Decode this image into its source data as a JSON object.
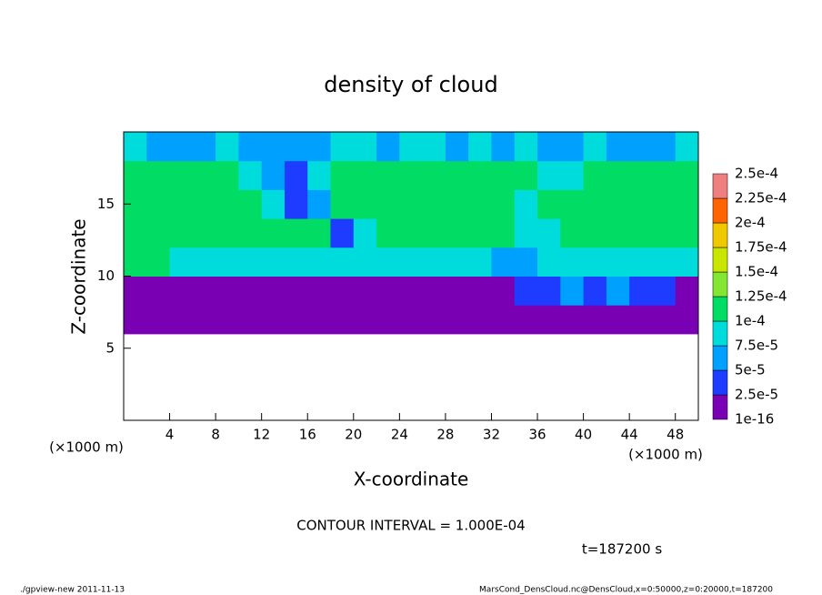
{
  "chart_data": {
    "type": "contour",
    "title": "density of cloud",
    "xlabel": "X-coordinate",
    "ylabel": "Z-coordinate",
    "xunit": "(×1000 m)",
    "yunit": "(×1000 m)",
    "note": "CONTOUR INTERVAL = 1.000E-04",
    "time": "t=187200 s",
    "footer_left": "./gpview-new   2011-11-13",
    "footer_right": "MarsCond_DensCloud.nc@DensCloud,x=0:50000,z=0:20000,t=187200",
    "xlim": [
      0,
      50
    ],
    "ylim": [
      0,
      20
    ],
    "xticks": [
      4,
      8,
      12,
      16,
      20,
      24,
      28,
      32,
      36,
      40,
      44,
      48
    ],
    "yticks": [
      5,
      10,
      15
    ],
    "x": [
      1,
      3,
      5,
      7,
      9,
      11,
      13,
      15,
      17,
      19,
      21,
      23,
      25,
      27,
      29,
      31,
      33,
      35,
      37,
      39,
      41,
      43,
      45,
      47,
      49
    ],
    "z": [
      1,
      3,
      5,
      7,
      9,
      11,
      13,
      15,
      17,
      19
    ],
    "values": [
      [
        null,
        null,
        null,
        null,
        null,
        null,
        null,
        null,
        null,
        null,
        null,
        null,
        null,
        null,
        null,
        null,
        null,
        null,
        null,
        null,
        null,
        null,
        null,
        null,
        null
      ],
      [
        null,
        null,
        null,
        null,
        null,
        null,
        null,
        null,
        null,
        null,
        null,
        null,
        null,
        null,
        null,
        null,
        null,
        null,
        null,
        null,
        null,
        null,
        null,
        null,
        null
      ],
      [
        null,
        null,
        null,
        null,
        null,
        null,
        null,
        null,
        null,
        null,
        null,
        null,
        null,
        null,
        null,
        null,
        null,
        null,
        null,
        null,
        null,
        null,
        null,
        null,
        null
      ],
      [
        1e-05,
        1e-05,
        1e-05,
        1e-05,
        1e-05,
        1e-05,
        1e-05,
        1e-05,
        1e-05,
        1e-05,
        1e-05,
        1e-05,
        1e-05,
        1e-05,
        1e-05,
        1e-05,
        1e-05,
        1e-05,
        1e-05,
        1e-05,
        1e-05,
        1e-05,
        1e-05,
        1e-05,
        1e-05
      ],
      [
        2e-05,
        2e-05,
        2e-05,
        2e-05,
        2e-05,
        2e-05,
        2e-05,
        2e-05,
        2e-05,
        2e-05,
        2e-05,
        2e-05,
        2e-05,
        2e-05,
        2e-05,
        2e-05,
        2e-05,
        3e-05,
        4e-05,
        6e-05,
        4e-05,
        5e-05,
        3e-05,
        4e-05,
        2e-05
      ],
      [
        0.000105,
        0.000105,
        9e-05,
        9e-05,
        9e-05,
        9e-05,
        9e-05,
        8e-05,
        9e-05,
        8e-05,
        9e-05,
        9e-05,
        9e-05,
        9e-05,
        8e-05,
        8e-05,
        7e-05,
        6e-05,
        8e-05,
        9e-05,
        8e-05,
        9e-05,
        8e-05,
        9e-05,
        8e-05
      ],
      [
        0.000115,
        0.00011,
        0.00012,
        0.000115,
        0.00011,
        0.000115,
        0.00011,
        0.000115,
        0.00011,
        3e-05,
        9e-05,
        0.00011,
        0.000115,
        0.00011,
        0.00011,
        0.000115,
        0.00011,
        9e-05,
        8e-05,
        0.00011,
        0.000115,
        0.00011,
        0.000115,
        0.00011,
        0.00011
      ],
      [
        0.000115,
        0.00011,
        0.00012,
        0.000115,
        0.00011,
        0.00011,
        8e-05,
        3e-05,
        6e-05,
        0.00011,
        0.000115,
        0.00011,
        0.000115,
        0.00011,
        0.000115,
        0.00011,
        0.000115,
        8e-05,
        0.00011,
        0.000115,
        0.00011,
        0.000115,
        0.00012,
        0.00011,
        0.000115
      ],
      [
        0.00011,
        0.000115,
        0.00011,
        0.00012,
        0.00011,
        8e-05,
        5e-05,
        4e-05,
        9e-05,
        0.00011,
        0.000115,
        0.00011,
        0.00012,
        0.00011,
        0.000115,
        0.00011,
        0.00012,
        0.00011,
        8e-05,
        9e-05,
        0.00011,
        0.000115,
        0.00012,
        0.00011,
        0.000115
      ],
      [
        8e-05,
        7e-05,
        6e-05,
        7e-05,
        8e-05,
        6e-05,
        5e-05,
        6e-05,
        7e-05,
        8e-05,
        8e-05,
        7e-05,
        8e-05,
        8e-05,
        7e-05,
        8e-05,
        7e-05,
        8e-05,
        6e-05,
        7e-05,
        8e-05,
        7e-05,
        6e-05,
        7e-05,
        8e-05
      ]
    ],
    "levels": [
      "1e-16",
      {
        "value": 2.5e-05,
        "label": "2.5e-5"
      },
      {
        "value": 5e-05,
        "label": "5e-5"
      },
      {
        "value": 7.5e-05,
        "label": "7.5e-5"
      },
      {
        "value": 0.0001,
        "label": "1e-4"
      },
      {
        "value": 0.000125,
        "label": "1.25e-4"
      },
      {
        "value": 0.00015,
        "label": "1.5e-4"
      },
      {
        "value": 0.000175,
        "label": "1.75e-4"
      },
      {
        "value": 0.0002,
        "label": "2e-4"
      },
      {
        "value": 0.000225,
        "label": "2.25e-4"
      },
      {
        "value": 0.00025,
        "label": "2.5e-4"
      }
    ],
    "colors": [
      "#7a00b4",
      "#1e3cff",
      "#00a0ff",
      "#00dcdc",
      "#00dc64",
      "#82e632",
      "#c8e600",
      "#f0c800",
      "#ff6400",
      "#f08080"
    ]
  }
}
